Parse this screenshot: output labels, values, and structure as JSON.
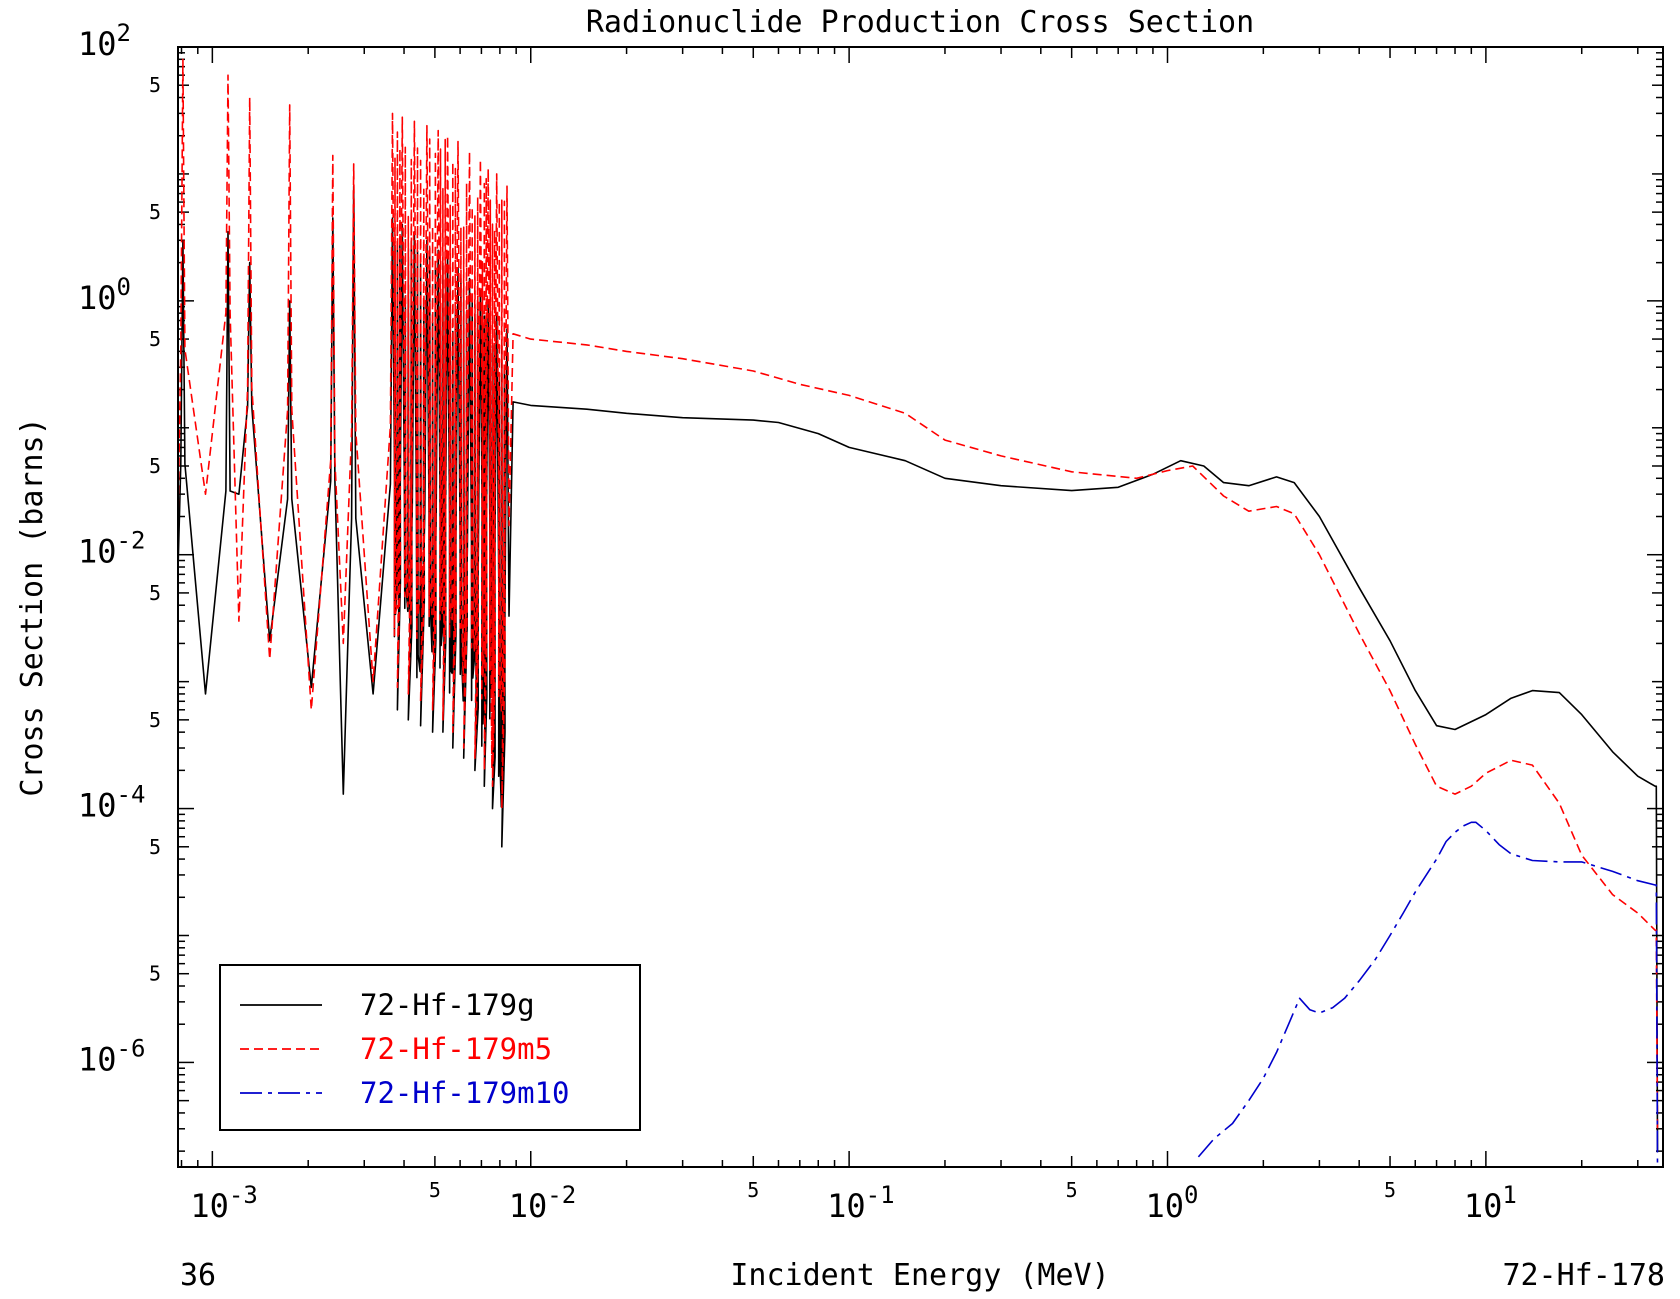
{
  "chart_data": {
    "type": "line",
    "title": "Radionuclide Production Cross Section",
    "xlabel": "Incident Energy (MeV)",
    "ylabel": "Cross Section (barns)",
    "x_scale": "log",
    "y_scale": "log",
    "xlim": [
      0.00078,
      36
    ],
    "ylim": [
      1.5e-07,
      100
    ],
    "corner_labels": {
      "left": "36",
      "right": "72-Hf-178"
    },
    "x_major_ticks": [
      {
        "value": 0.001,
        "base": "10",
        "exp": "-3"
      },
      {
        "value": 0.01,
        "base": "10",
        "exp": "-2"
      },
      {
        "value": 0.1,
        "base": "10",
        "exp": "-1"
      },
      {
        "value": 1,
        "base": "10",
        "exp": "0"
      },
      {
        "value": 10,
        "base": "10",
        "exp": "1"
      }
    ],
    "x_mid_ticks": [
      {
        "value": 0.005,
        "label": "5"
      },
      {
        "value": 0.05,
        "label": "5"
      },
      {
        "value": 0.5,
        "label": "5"
      },
      {
        "value": 5,
        "label": "5"
      }
    ],
    "y_major_ticks": [
      {
        "value": 100,
        "base": "10",
        "exp": "2"
      },
      {
        "value": 1,
        "base": "10",
        "exp": "0"
      },
      {
        "value": 0.01,
        "base": "10",
        "exp": "-2"
      },
      {
        "value": 0.0001,
        "base": "10",
        "exp": "-4"
      },
      {
        "value": 1e-06,
        "base": "10",
        "exp": "-6"
      }
    ],
    "y_mid_ticks": [
      {
        "value": 50,
        "label": "5"
      },
      {
        "value": 5,
        "label": "5"
      },
      {
        "value": 0.5,
        "label": "5"
      },
      {
        "value": 0.05,
        "label": "5"
      },
      {
        "value": 0.005,
        "label": "5"
      },
      {
        "value": 0.0005,
        "label": "5"
      },
      {
        "value": 5e-05,
        "label": "5"
      },
      {
        "value": 5e-06,
        "label": "5"
      }
    ],
    "legend": {
      "position": "bottom-left"
    },
    "resonance_region": {
      "resonance_energies": [
        0.000808,
        0.00112,
        0.00131,
        0.00175,
        0.00239,
        0.00278,
        0.00368,
        0.00395,
        0.00431,
        0.00472,
        0.00512,
        0.00548,
        0.00591,
        0.00642,
        0.00695,
        0.00735,
        0.00782,
        0.00842
      ],
      "fine_structure_range": [
        0.0031,
        0.0088
      ],
      "fine_structure_count": 60
    },
    "series": [
      {
        "name": "72-Hf-179g",
        "color": "#000000",
        "dash": "solid",
        "resonance": {
          "peak_values": [
            3.0,
            3.5,
            2.0,
            1.0,
            4.5,
            8.0,
            4.5,
            4.0,
            3.5,
            3.0,
            2.5,
            2.2,
            1.8,
            1.5,
            1.2,
            1.0,
            0.8,
            0.6
          ],
          "valley_values": [
            0.0025,
            0.0008,
            0.03,
            0.0021,
            0.0009,
            0.00013,
            0.0008,
            0.0006,
            0.0005,
            0.00045,
            0.0004,
            0.0004,
            0.0003,
            0.00025,
            0.0002,
            0.00015,
            0.0001,
            5e-05
          ]
        },
        "x": [
          0.0088,
          0.01,
          0.015,
          0.02,
          0.03,
          0.05,
          0.06,
          0.08,
          0.1,
          0.15,
          0.2,
          0.3,
          0.5,
          0.7,
          0.9,
          1.1,
          1.3,
          1.5,
          1.8,
          2.2,
          2.5,
          3,
          4,
          5,
          6,
          7,
          8,
          10,
          12,
          14,
          17,
          20,
          25,
          30,
          34,
          34.3,
          34.6
        ],
        "y": [
          0.16,
          0.15,
          0.14,
          0.13,
          0.12,
          0.115,
          0.11,
          0.09,
          0.07,
          0.055,
          0.04,
          0.035,
          0.032,
          0.034,
          0.043,
          0.055,
          0.05,
          0.037,
          0.035,
          0.041,
          0.037,
          0.02,
          0.0055,
          0.0021,
          0.00085,
          0.00045,
          0.00042,
          0.00055,
          0.00074,
          0.00085,
          0.00082,
          0.00055,
          0.00028,
          0.00018,
          0.00015,
          0.00015,
          2e-07
        ]
      },
      {
        "name": "72-Hf-179m5",
        "color": "#ff0000",
        "dash": "dashed",
        "resonance": {
          "peak_values": [
            80,
            60,
            40,
            35,
            14,
            12,
            30,
            28,
            26,
            24,
            22,
            20,
            18,
            15,
            13,
            11,
            10,
            8
          ],
          "valley_values": [
            0.006,
            0.03,
            0.003,
            0.0015,
            0.0006,
            0.002,
            0.001,
            0.0009,
            0.0008,
            0.0007,
            0.0006,
            0.0005,
            0.0004,
            0.0003,
            0.00025,
            0.0002,
            0.00015,
            0.0001
          ]
        },
        "x": [
          0.0088,
          0.01,
          0.015,
          0.02,
          0.03,
          0.05,
          0.07,
          0.1,
          0.15,
          0.2,
          0.3,
          0.5,
          0.8,
          1.0,
          1.2,
          1.5,
          1.8,
          2.2,
          2.5,
          3,
          4,
          5,
          6,
          7,
          8,
          9,
          10,
          12,
          14,
          17,
          20,
          25,
          30,
          34,
          34.3,
          34.6
        ],
        "y": [
          0.55,
          0.5,
          0.45,
          0.4,
          0.35,
          0.28,
          0.22,
          0.18,
          0.13,
          0.08,
          0.06,
          0.045,
          0.04,
          0.046,
          0.05,
          0.029,
          0.022,
          0.024,
          0.021,
          0.01,
          0.0024,
          0.00085,
          0.00032,
          0.00015,
          0.00013,
          0.00015,
          0.00019,
          0.00024,
          0.00022,
          0.00011,
          4.3e-05,
          2.1e-05,
          1.5e-05,
          1.1e-05,
          1.1e-05,
          3e-07
        ]
      },
      {
        "name": "72-Hf-179m10",
        "color": "#0000cc",
        "dash": "dashdot",
        "x": [
          1.25,
          1.4,
          1.6,
          1.8,
          2.0,
          2.2,
          2.4,
          2.6,
          2.8,
          3,
          3.3,
          3.6,
          4,
          4.5,
          5,
          5.5,
          6,
          7,
          7.5,
          8,
          8.5,
          9,
          9.3,
          10,
          11,
          12,
          14,
          17,
          20,
          25,
          30,
          34,
          34.3,
          34.6
        ],
        "y": [
          1.8e-07,
          2.5e-07,
          3.3e-07,
          5e-07,
          7.5e-07,
          1.2e-06,
          2e-06,
          3.2e-06,
          2.6e-06,
          2.45e-06,
          2.7e-06,
          3.2e-06,
          4.4e-06,
          6.5e-06,
          1e-05,
          1.5e-05,
          2.2e-05,
          4e-05,
          5.5e-05,
          6.5e-05,
          7.3e-05,
          7.8e-05,
          7.8e-05,
          6.7e-05,
          5.2e-05,
          4.4e-05,
          3.9e-05,
          3.8e-05,
          3.8e-05,
          3.2e-05,
          2.7e-05,
          2.5e-05,
          2.5e-05,
          1.5e-07
        ]
      }
    ]
  }
}
